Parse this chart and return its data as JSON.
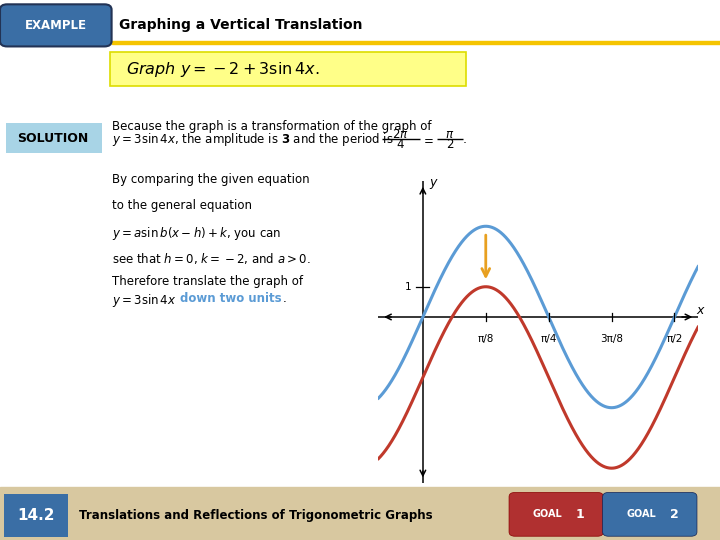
{
  "blue_color": "#5B9BD5",
  "red_color": "#C0392B",
  "orange_color": "#E8A020",
  "bg_color": "#FFFFFF",
  "yellow_bg": "#FFFF88",
  "yellow_border": "#DDDD00",
  "header_yellow": "#F5C400",
  "example_bg": "#3A6EA5",
  "solution_bg": "#A8D4E6",
  "footer_bg": "#D8C8A0",
  "footer_blue_box": "#3A6EA5",
  "goal1_color": "#B03030",
  "goal2_color": "#3A6EA5",
  "xlim": [
    -0.28,
    1.72
  ],
  "ylim": [
    -5.5,
    4.5
  ],
  "x_ticks": [
    0.3927,
    0.7854,
    1.1781,
    1.5708
  ],
  "x_tick_labels": [
    "π/8",
    "π/4",
    "3π/8",
    "π/2"
  ]
}
